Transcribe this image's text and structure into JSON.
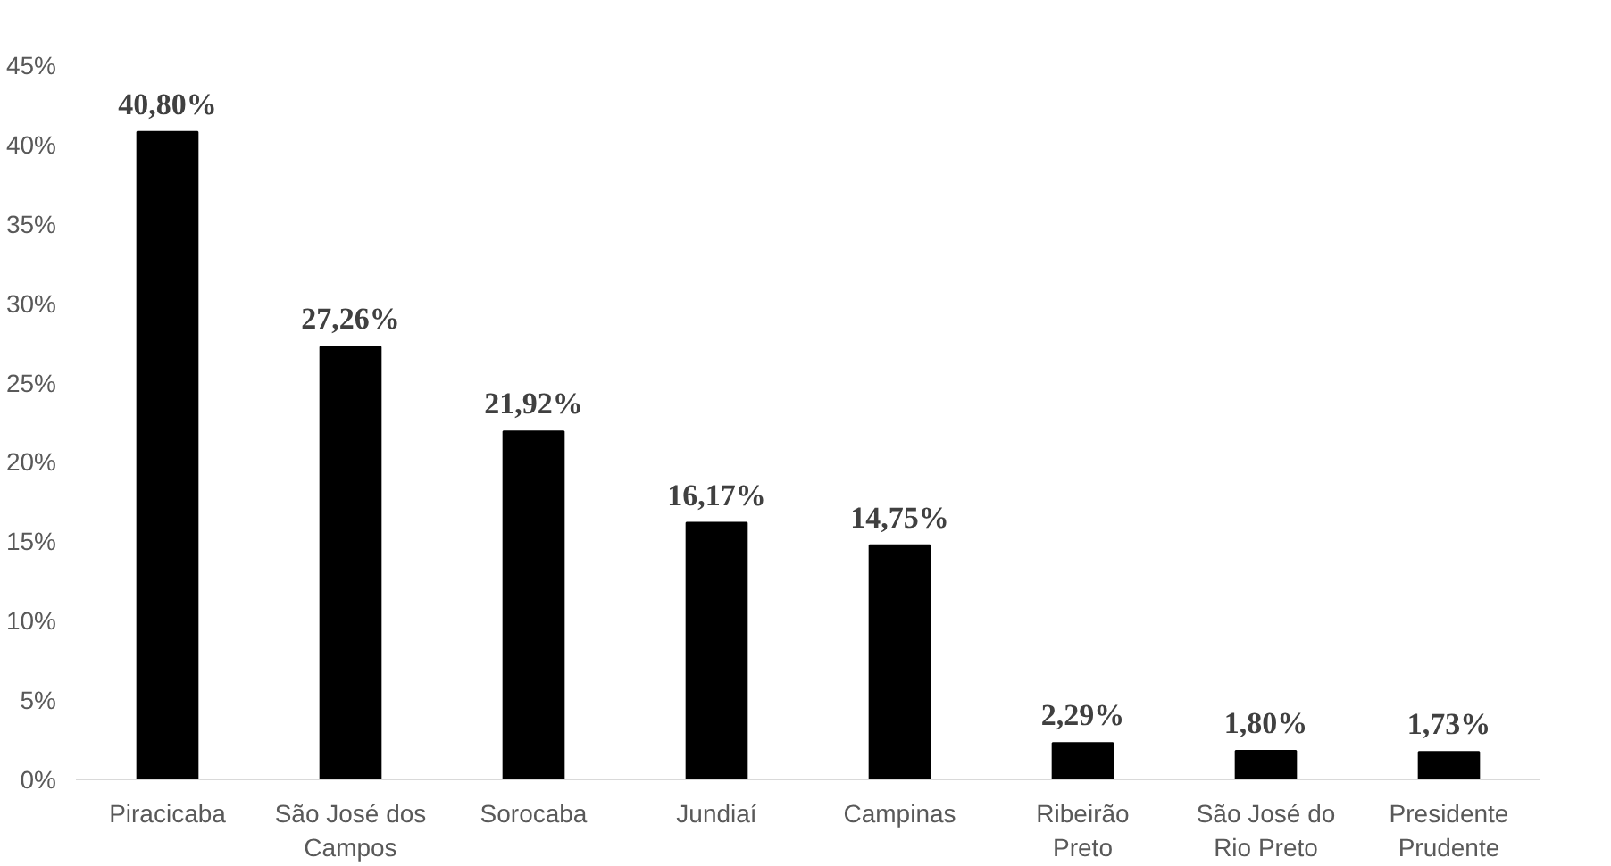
{
  "chart_data": {
    "type": "bar",
    "categories": [
      "Piracicaba",
      "São José dos Campos",
      "Sorocaba",
      "Jundiaí",
      "Campinas",
      "Ribeirão Preto",
      "São José do Rio Preto",
      "Presidente Prudente"
    ],
    "values": [
      40.8,
      27.26,
      21.92,
      16.17,
      14.75,
      2.29,
      1.8,
      1.73
    ],
    "value_labels": [
      "40,80%",
      "27,26%",
      "21,92%",
      "16,17%",
      "14,75%",
      "2,29%",
      "1,80%",
      "1,73%"
    ],
    "color": "#000000",
    "ylim": [
      0,
      45
    ],
    "yticks": [
      {
        "value": 0,
        "label": "0%"
      },
      {
        "value": 5,
        "label": "5%"
      },
      {
        "value": 10,
        "label": "10%"
      },
      {
        "value": 15,
        "label": "15%"
      },
      {
        "value": 20,
        "label": "20%"
      },
      {
        "value": 25,
        "label": "25%"
      },
      {
        "value": 30,
        "label": "30%"
      },
      {
        "value": 35,
        "label": "35%"
      },
      {
        "value": 40,
        "label": "40%"
      },
      {
        "value": 45,
        "label": "45%"
      }
    ],
    "grid": false
  }
}
